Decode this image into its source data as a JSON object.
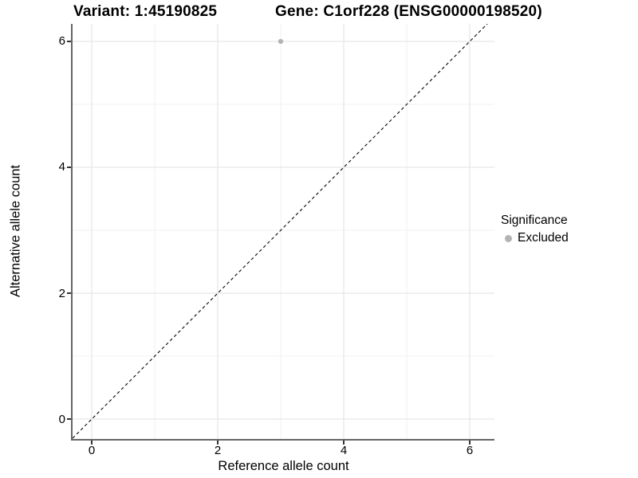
{
  "header": {
    "variant_title": "Variant: 1:45190825",
    "gene_title": "Gene: C1orf228 (ENSG00000198520)"
  },
  "axes": {
    "x_label": "Reference allele count",
    "y_label": "Alternative allele count"
  },
  "legend": {
    "title": "Significance",
    "items": [
      {
        "label": "Excluded",
        "color": "#b3b3b3"
      }
    ]
  },
  "chart_data": {
    "type": "scatter",
    "title": "Variant: 1:45190825   Gene: C1orf228 (ENSG00000198520)",
    "xlabel": "Reference allele count",
    "ylabel": "Alternative allele count",
    "xlim": [
      -0.304,
      6.392
    ],
    "ylim": [
      -0.316,
      6.278
    ],
    "x_ticks": [
      0,
      2,
      4,
      6
    ],
    "y_ticks": [
      0,
      2,
      4,
      6
    ],
    "x_minor_ticks": [
      1,
      3,
      5
    ],
    "y_minor_ticks": [
      1,
      3,
      5
    ],
    "grid": true,
    "legend_position": "right",
    "series": [
      {
        "name": "Excluded",
        "color": "#b3b3b3",
        "points": [
          {
            "x": 3,
            "y": 6
          }
        ]
      }
    ],
    "reference_line": {
      "type": "identity y=x",
      "style": "dashed",
      "color": "#1a1a1a"
    },
    "colors": {
      "point": "#b3b3b3",
      "grid_major": "#e6e6e6",
      "grid_minor": "#f1f1f1",
      "axis_line": "#666666",
      "tick_mark": "#333333",
      "dashed_line": "#1a1a1a"
    }
  }
}
